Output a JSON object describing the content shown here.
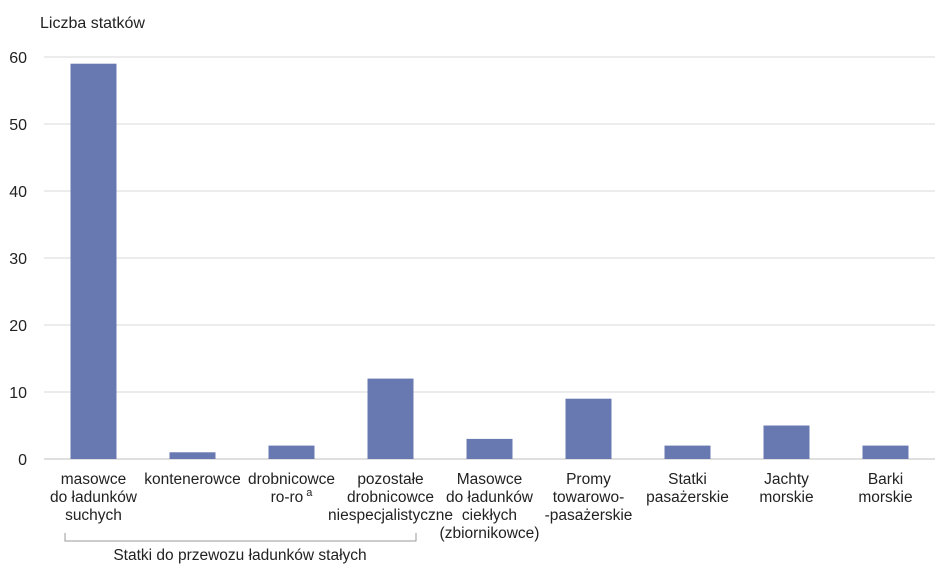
{
  "chart_data": {
    "type": "bar",
    "ylabel": "Liczba statków",
    "xlabel": "",
    "ylim": [
      0,
      60
    ],
    "yticks": [
      0,
      10,
      20,
      30,
      40,
      50,
      60
    ],
    "grid": true,
    "bar_color": "#6878b0",
    "categories": [
      [
        "masowce",
        "do ładunków",
        "suchych"
      ],
      [
        "kontenerowce"
      ],
      [
        "drobnicowce",
        "ro-ro"
      ],
      [
        "pozostałe",
        "drobnicowce",
        "niespecjalistyczne"
      ],
      [
        "Masowce",
        "do ładunków",
        "ciekłych",
        "(zbiornikowce)"
      ],
      [
        "Promy",
        "towarowo-",
        "-pasażerskie"
      ],
      [
        "Statki",
        "pasażerskie"
      ],
      [
        "Jachty",
        "morskie"
      ],
      [
        "Barki",
        "morskie"
      ]
    ],
    "footnote_marker": "a",
    "values": [
      59,
      1,
      2,
      12,
      3,
      9,
      2,
      5,
      2
    ],
    "group_label": "Statki do przewozu ładunków stałych"
  }
}
